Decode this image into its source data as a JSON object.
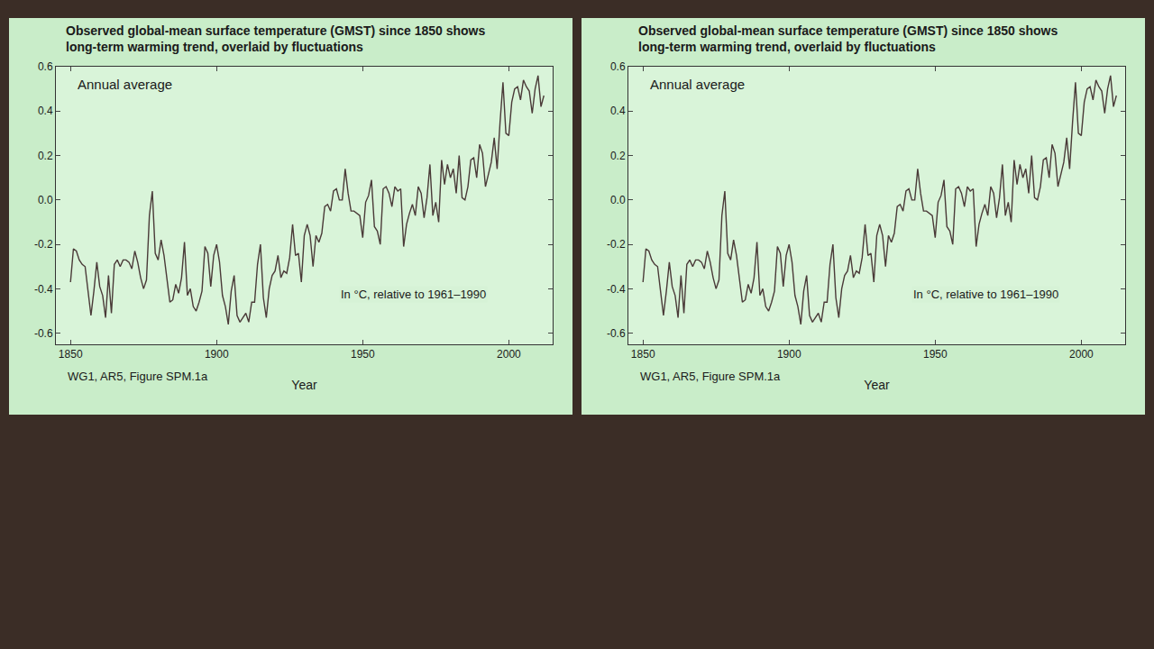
{
  "chart_data": [
    {
      "type": "line",
      "title": "Observed global-mean surface temperature (GMST) since 1850 shows long-term warming trend, overlaid by fluctuations",
      "x_label": "Year",
      "annotations": [
        "Annual average",
        "In °C, relative to 1961–1990"
      ],
      "source": "WG1, AR5, Figure SPM.1a",
      "color": "#4a3a38",
      "grid": false,
      "x": [
        1850,
        1851,
        1852,
        1853,
        1854,
        1855,
        1856,
        1857,
        1858,
        1859,
        1860,
        1861,
        1862,
        1863,
        1864,
        1865,
        1866,
        1867,
        1868,
        1869,
        1870,
        1871,
        1872,
        1873,
        1874,
        1875,
        1876,
        1877,
        1878,
        1879,
        1880,
        1881,
        1882,
        1883,
        1884,
        1885,
        1886,
        1887,
        1888,
        1889,
        1890,
        1891,
        1892,
        1893,
        1894,
        1895,
        1896,
        1897,
        1898,
        1899,
        1900,
        1901,
        1902,
        1903,
        1904,
        1905,
        1906,
        1907,
        1908,
        1909,
        1910,
        1911,
        1912,
        1913,
        1914,
        1915,
        1916,
        1917,
        1918,
        1919,
        1920,
        1921,
        1922,
        1923,
        1924,
        1925,
        1926,
        1927,
        1928,
        1929,
        1930,
        1931,
        1932,
        1933,
        1934,
        1935,
        1936,
        1937,
        1938,
        1939,
        1940,
        1941,
        1942,
        1943,
        1944,
        1945,
        1946,
        1947,
        1948,
        1949,
        1950,
        1951,
        1952,
        1953,
        1954,
        1955,
        1956,
        1957,
        1958,
        1959,
        1960,
        1961,
        1962,
        1963,
        1964,
        1965,
        1966,
        1967,
        1968,
        1969,
        1970,
        1971,
        1972,
        1973,
        1974,
        1975,
        1976,
        1977,
        1978,
        1979,
        1980,
        1981,
        1982,
        1983,
        1984,
        1985,
        1986,
        1987,
        1988,
        1989,
        1990,
        1991,
        1992,
        1993,
        1994,
        1995,
        1996,
        1997,
        1998,
        1999,
        2000,
        2001,
        2002,
        2003,
        2004,
        2005,
        2006,
        2007,
        2008,
        2009,
        2010,
        2011,
        2012
      ],
      "values": [
        -0.37,
        -0.22,
        -0.23,
        -0.27,
        -0.29,
        -0.3,
        -0.41,
        -0.52,
        -0.41,
        -0.28,
        -0.39,
        -0.43,
        -0.53,
        -0.34,
        -0.51,
        -0.29,
        -0.27,
        -0.3,
        -0.27,
        -0.27,
        -0.28,
        -0.31,
        -0.23,
        -0.28,
        -0.35,
        -0.4,
        -0.36,
        -0.07,
        0.04,
        -0.24,
        -0.27,
        -0.18,
        -0.25,
        -0.35,
        -0.46,
        -0.45,
        -0.38,
        -0.42,
        -0.35,
        -0.19,
        -0.43,
        -0.4,
        -0.48,
        -0.5,
        -0.46,
        -0.41,
        -0.21,
        -0.24,
        -0.39,
        -0.25,
        -0.2,
        -0.28,
        -0.43,
        -0.48,
        -0.56,
        -0.41,
        -0.34,
        -0.52,
        -0.55,
        -0.53,
        -0.51,
        -0.55,
        -0.46,
        -0.46,
        -0.29,
        -0.2,
        -0.44,
        -0.53,
        -0.4,
        -0.34,
        -0.32,
        -0.25,
        -0.35,
        -0.32,
        -0.33,
        -0.26,
        -0.11,
        -0.25,
        -0.24,
        -0.37,
        -0.16,
        -0.11,
        -0.16,
        -0.3,
        -0.16,
        -0.19,
        -0.15,
        -0.03,
        -0.02,
        -0.05,
        0.04,
        0.05,
        0.0,
        0.0,
        0.14,
        0.03,
        -0.05,
        -0.05,
        -0.06,
        -0.07,
        -0.17,
        -0.01,
        0.02,
        0.09,
        -0.12,
        -0.14,
        -0.2,
        0.05,
        0.06,
        0.03,
        -0.03,
        0.06,
        0.04,
        0.05,
        -0.21,
        -0.11,
        -0.06,
        -0.02,
        -0.07,
        0.06,
        0.03,
        -0.08,
        0.01,
        0.16,
        -0.07,
        -0.01,
        -0.1,
        0.18,
        0.07,
        0.16,
        0.1,
        0.14,
        0.03,
        0.2,
        0.01,
        0.0,
        0.06,
        0.18,
        0.19,
        0.1,
        0.25,
        0.21,
        0.06,
        0.11,
        0.17,
        0.28,
        0.14,
        0.35,
        0.53,
        0.3,
        0.29,
        0.44,
        0.5,
        0.51,
        0.45,
        0.54,
        0.51,
        0.49,
        0.39,
        0.5,
        0.56,
        0.42,
        0.47
      ],
      "xlim": [
        1845,
        2015
      ],
      "ylim": [
        -0.65,
        0.6
      ],
      "xticks": [
        1850,
        1900,
        1950,
        2000
      ],
      "yticks": [
        -0.6,
        -0.4,
        -0.2,
        {
          "value": 0,
          "label": "0.0"
        },
        0.2,
        0.4,
        0.6
      ]
    },
    {
      "type": "line",
      "title": "Observed global-mean surface temperature (GMST) since 1850 shows long-term warming trend, overlaid by fluctuations",
      "x_label": "Year",
      "annotations": [
        "Annual average",
        "In °C, relative to 1961–1990"
      ],
      "source": "WG1, AR5, Figure SPM.1a",
      "color": "#4a3a38",
      "grid": false,
      "x": [
        1850,
        1851,
        1852,
        1853,
        1854,
        1855,
        1856,
        1857,
        1858,
        1859,
        1860,
        1861,
        1862,
        1863,
        1864,
        1865,
        1866,
        1867,
        1868,
        1869,
        1870,
        1871,
        1872,
        1873,
        1874,
        1875,
        1876,
        1877,
        1878,
        1879,
        1880,
        1881,
        1882,
        1883,
        1884,
        1885,
        1886,
        1887,
        1888,
        1889,
        1890,
        1891,
        1892,
        1893,
        1894,
        1895,
        1896,
        1897,
        1898,
        1899,
        1900,
        1901,
        1902,
        1903,
        1904,
        1905,
        1906,
        1907,
        1908,
        1909,
        1910,
        1911,
        1912,
        1913,
        1914,
        1915,
        1916,
        1917,
        1918,
        1919,
        1920,
        1921,
        1922,
        1923,
        1924,
        1925,
        1926,
        1927,
        1928,
        1929,
        1930,
        1931,
        1932,
        1933,
        1934,
        1935,
        1936,
        1937,
        1938,
        1939,
        1940,
        1941,
        1942,
        1943,
        1944,
        1945,
        1946,
        1947,
        1948,
        1949,
        1950,
        1951,
        1952,
        1953,
        1954,
        1955,
        1956,
        1957,
        1958,
        1959,
        1960,
        1961,
        1962,
        1963,
        1964,
        1965,
        1966,
        1967,
        1968,
        1969,
        1970,
        1971,
        1972,
        1973,
        1974,
        1975,
        1976,
        1977,
        1978,
        1979,
        1980,
        1981,
        1982,
        1983,
        1984,
        1985,
        1986,
        1987,
        1988,
        1989,
        1990,
        1991,
        1992,
        1993,
        1994,
        1995,
        1996,
        1997,
        1998,
        1999,
        2000,
        2001,
        2002,
        2003,
        2004,
        2005,
        2006,
        2007,
        2008,
        2009,
        2010,
        2011,
        2012
      ],
      "values": [
        -0.37,
        -0.22,
        -0.23,
        -0.27,
        -0.29,
        -0.3,
        -0.41,
        -0.52,
        -0.41,
        -0.28,
        -0.39,
        -0.43,
        -0.53,
        -0.34,
        -0.51,
        -0.29,
        -0.27,
        -0.3,
        -0.27,
        -0.27,
        -0.28,
        -0.31,
        -0.23,
        -0.28,
        -0.35,
        -0.4,
        -0.36,
        -0.07,
        0.04,
        -0.24,
        -0.27,
        -0.18,
        -0.25,
        -0.35,
        -0.46,
        -0.45,
        -0.38,
        -0.42,
        -0.35,
        -0.19,
        -0.43,
        -0.4,
        -0.48,
        -0.5,
        -0.46,
        -0.41,
        -0.21,
        -0.24,
        -0.39,
        -0.25,
        -0.2,
        -0.28,
        -0.43,
        -0.48,
        -0.56,
        -0.41,
        -0.34,
        -0.52,
        -0.55,
        -0.53,
        -0.51,
        -0.55,
        -0.46,
        -0.46,
        -0.29,
        -0.2,
        -0.44,
        -0.53,
        -0.4,
        -0.34,
        -0.32,
        -0.25,
        -0.35,
        -0.32,
        -0.33,
        -0.26,
        -0.11,
        -0.25,
        -0.24,
        -0.37,
        -0.16,
        -0.11,
        -0.16,
        -0.3,
        -0.16,
        -0.19,
        -0.15,
        -0.03,
        -0.02,
        -0.05,
        0.04,
        0.05,
        0.0,
        0.0,
        0.14,
        0.03,
        -0.05,
        -0.05,
        -0.06,
        -0.07,
        -0.17,
        -0.01,
        0.02,
        0.09,
        -0.12,
        -0.14,
        -0.2,
        0.05,
        0.06,
        0.03,
        -0.03,
        0.06,
        0.04,
        0.05,
        -0.21,
        -0.11,
        -0.06,
        -0.02,
        -0.07,
        0.06,
        0.03,
        -0.08,
        0.01,
        0.16,
        -0.07,
        -0.01,
        -0.1,
        0.18,
        0.07,
        0.16,
        0.1,
        0.14,
        0.03,
        0.2,
        0.01,
        0.0,
        0.06,
        0.18,
        0.19,
        0.1,
        0.25,
        0.21,
        0.06,
        0.11,
        0.17,
        0.28,
        0.14,
        0.35,
        0.53,
        0.3,
        0.29,
        0.44,
        0.5,
        0.51,
        0.45,
        0.54,
        0.51,
        0.49,
        0.39,
        0.5,
        0.56,
        0.42,
        0.47
      ],
      "xlim": [
        1845,
        2015
      ],
      "ylim": [
        -0.65,
        0.6
      ],
      "xticks": [
        1850,
        1900,
        1950,
        2000
      ],
      "yticks": [
        -0.6,
        -0.4,
        -0.2,
        {
          "value": 0,
          "label": "0.0"
        },
        0.2,
        0.4,
        0.6
      ]
    }
  ]
}
